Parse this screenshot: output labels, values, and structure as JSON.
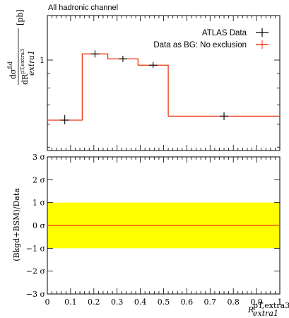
{
  "chart_data": [
    {
      "type": "line",
      "title": "All hadronic channel",
      "ylabel": "dσ^fid / dR^{pT,extra3}_{extra1} [pb]",
      "ylabel_parts": {
        "num": "dσ",
        "num_sup": "fid",
        "den": "dR",
        "den_sup": "pT,extra3",
        "den_sub": "extra1",
        "unit": "[pb]"
      },
      "y_scale": "log",
      "yticks": [
        1
      ],
      "ytick_labels": [
        "1"
      ],
      "xlim": [
        0,
        1
      ],
      "legend_position": "top-right",
      "legend": [
        "ATLAS Data",
        "Data as BG: No exclusion"
      ],
      "bins": [
        {
          "lo": 0.0,
          "hi": 0.15,
          "value": 0.62
        },
        {
          "lo": 0.15,
          "hi": 0.26,
          "value": 1.05
        },
        {
          "lo": 0.26,
          "hi": 0.39,
          "value": 1.01
        },
        {
          "lo": 0.39,
          "hi": 0.52,
          "value": 0.96
        },
        {
          "lo": 0.52,
          "hi": 1.0,
          "value": 0.64
        }
      ],
      "series": [
        {
          "name": "ATLAS Data",
          "color": "#000000",
          "points": [
            {
              "x": 0.075,
              "y": 0.62,
              "ylo": 0.6,
              "yhi": 0.645
            },
            {
              "x": 0.205,
              "y": 1.05,
              "ylo": 1.02,
              "yhi": 1.08
            },
            {
              "x": 0.325,
              "y": 1.01,
              "ylo": 0.985,
              "yhi": 1.035
            },
            {
              "x": 0.455,
              "y": 0.96,
              "ylo": 0.94,
              "yhi": 0.985
            },
            {
              "x": 0.76,
              "y": 0.64,
              "ylo": 0.62,
              "yhi": 0.66
            }
          ]
        },
        {
          "name": "Data as BG: No exclusion",
          "color": "#ee3311"
        }
      ]
    },
    {
      "type": "line",
      "ylabel": "(Bkgd+BSM)/Data",
      "xlabel": "R^{pT,extra3}_{extra1}",
      "xlabel_parts": {
        "base": "R",
        "sup": "pT,extra3",
        "sub": "extra1"
      },
      "ylim": [
        -3,
        3
      ],
      "yticks": [
        -3,
        -2,
        -1,
        0,
        1,
        2,
        3
      ],
      "ytick_labels": [
        "−3 σ",
        "−2 σ",
        "−1 σ",
        "0 σ",
        "1 σ",
        "2 σ",
        "3 σ"
      ],
      "xlim": [
        0,
        1
      ],
      "xticks": [
        0,
        0.1,
        0.2,
        0.3,
        0.4,
        0.5,
        0.6,
        0.7,
        0.8,
        0.9,
        1
      ],
      "xtick_labels": [
        "0",
        "0.1",
        "0.2",
        "0.3",
        "0.4",
        "0.5",
        "0.6",
        "0.7",
        "0.8",
        "0.9",
        "1"
      ],
      "band": {
        "lo": -1,
        "hi": 1,
        "color": "#ffff00"
      },
      "line": {
        "y": 0,
        "color": "#ee3311"
      }
    }
  ]
}
